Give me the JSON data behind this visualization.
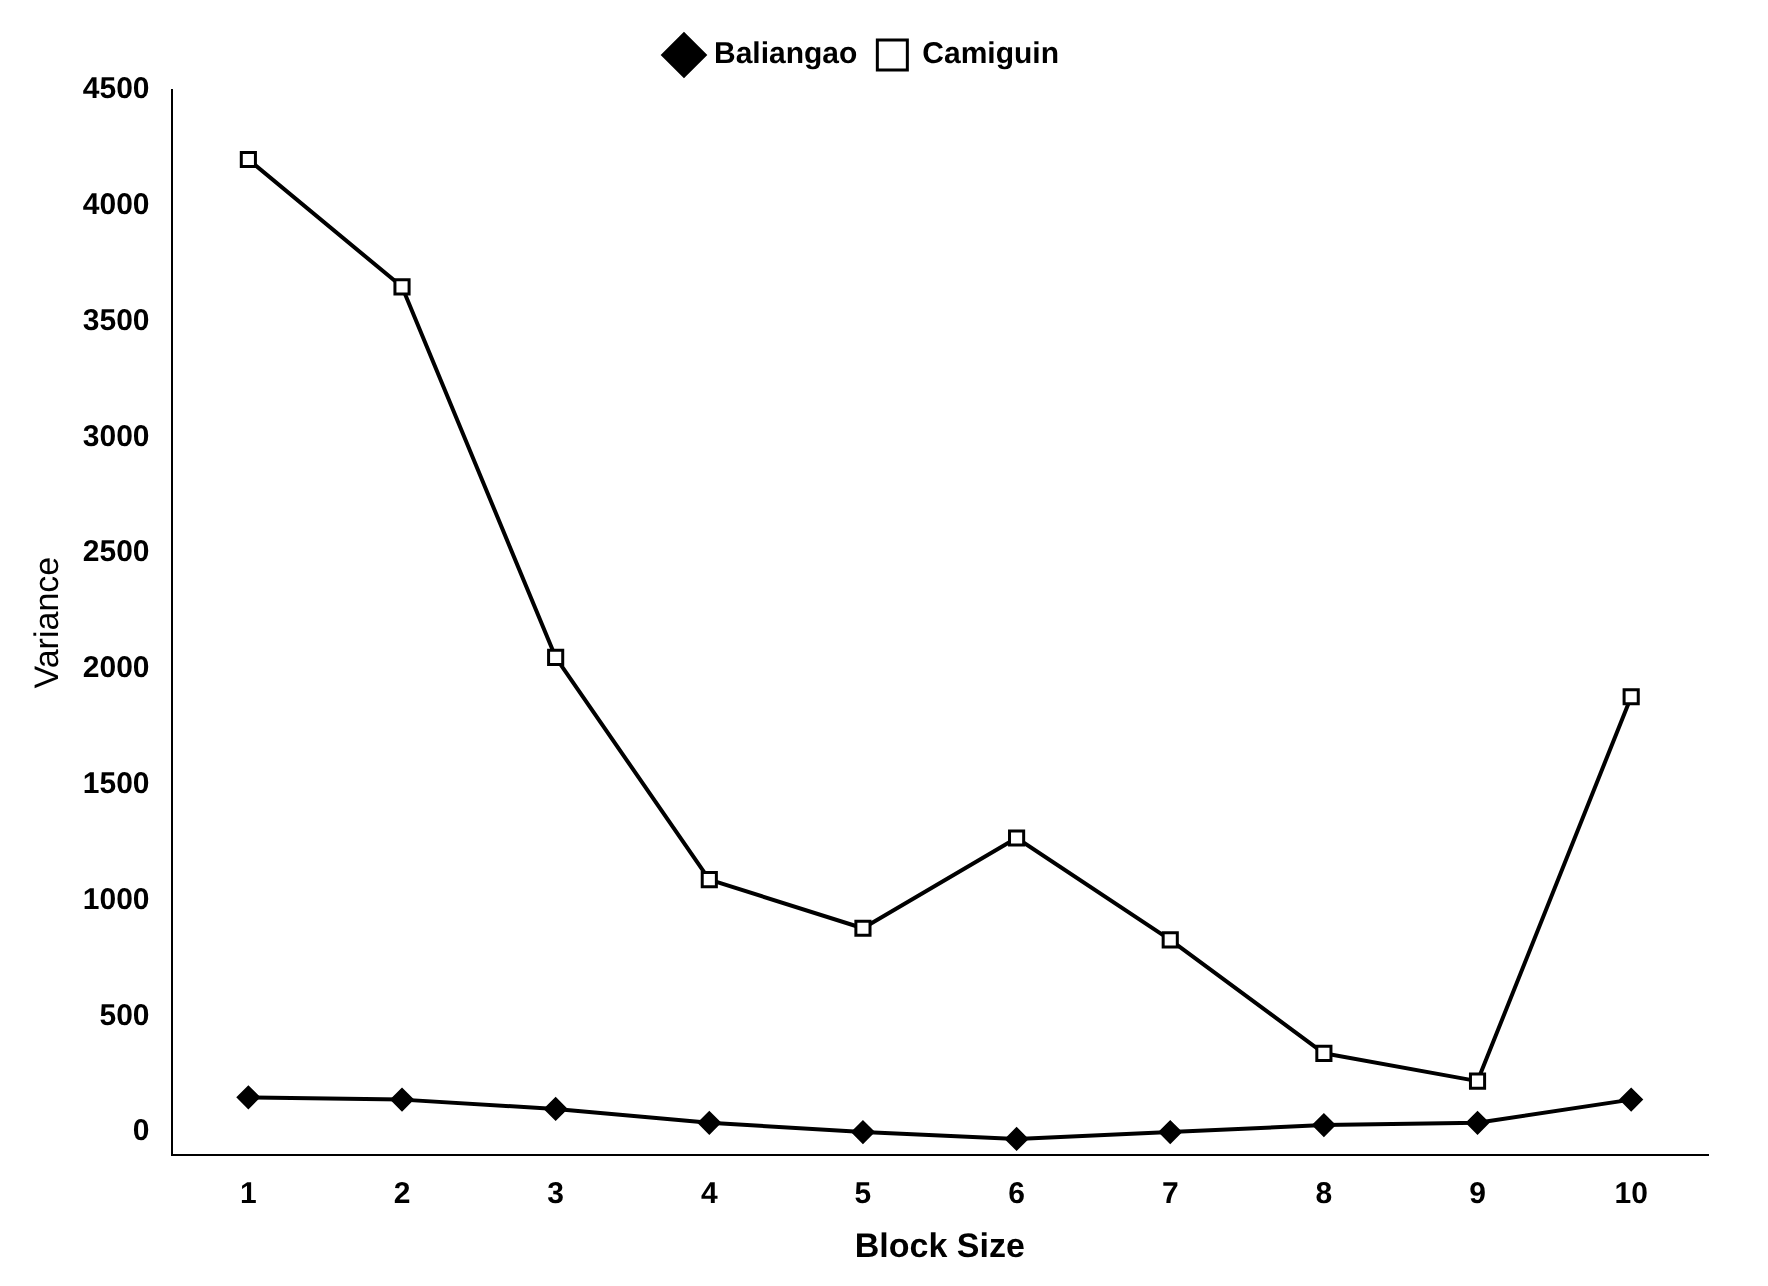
{
  "chart_data": {
    "type": "line",
    "xlabel": "Block Size",
    "ylabel": "Variance",
    "categories": [
      "1",
      "2",
      "3",
      "4",
      "5",
      "6",
      "7",
      "8",
      "9",
      "10"
    ],
    "series": [
      {
        "name": "Baliangao",
        "color": "#000000",
        "marker": "diamond",
        "values": [
          150,
          140,
          100,
          40,
          0,
          -30,
          0,
          30,
          40,
          140
        ]
      },
      {
        "name": "Camiguin",
        "color": "#000000",
        "marker": "square",
        "values": [
          4200,
          3650,
          2050,
          1090,
          880,
          1270,
          830,
          340,
          220,
          1880
        ]
      }
    ],
    "ylim": [
      -100,
      4500
    ],
    "yticks": [
      0,
      500,
      1000,
      1500,
      2000,
      2500,
      3000,
      3500,
      4000,
      4500
    ],
    "grid": false,
    "legend": "top",
    "line_style": "solid"
  }
}
